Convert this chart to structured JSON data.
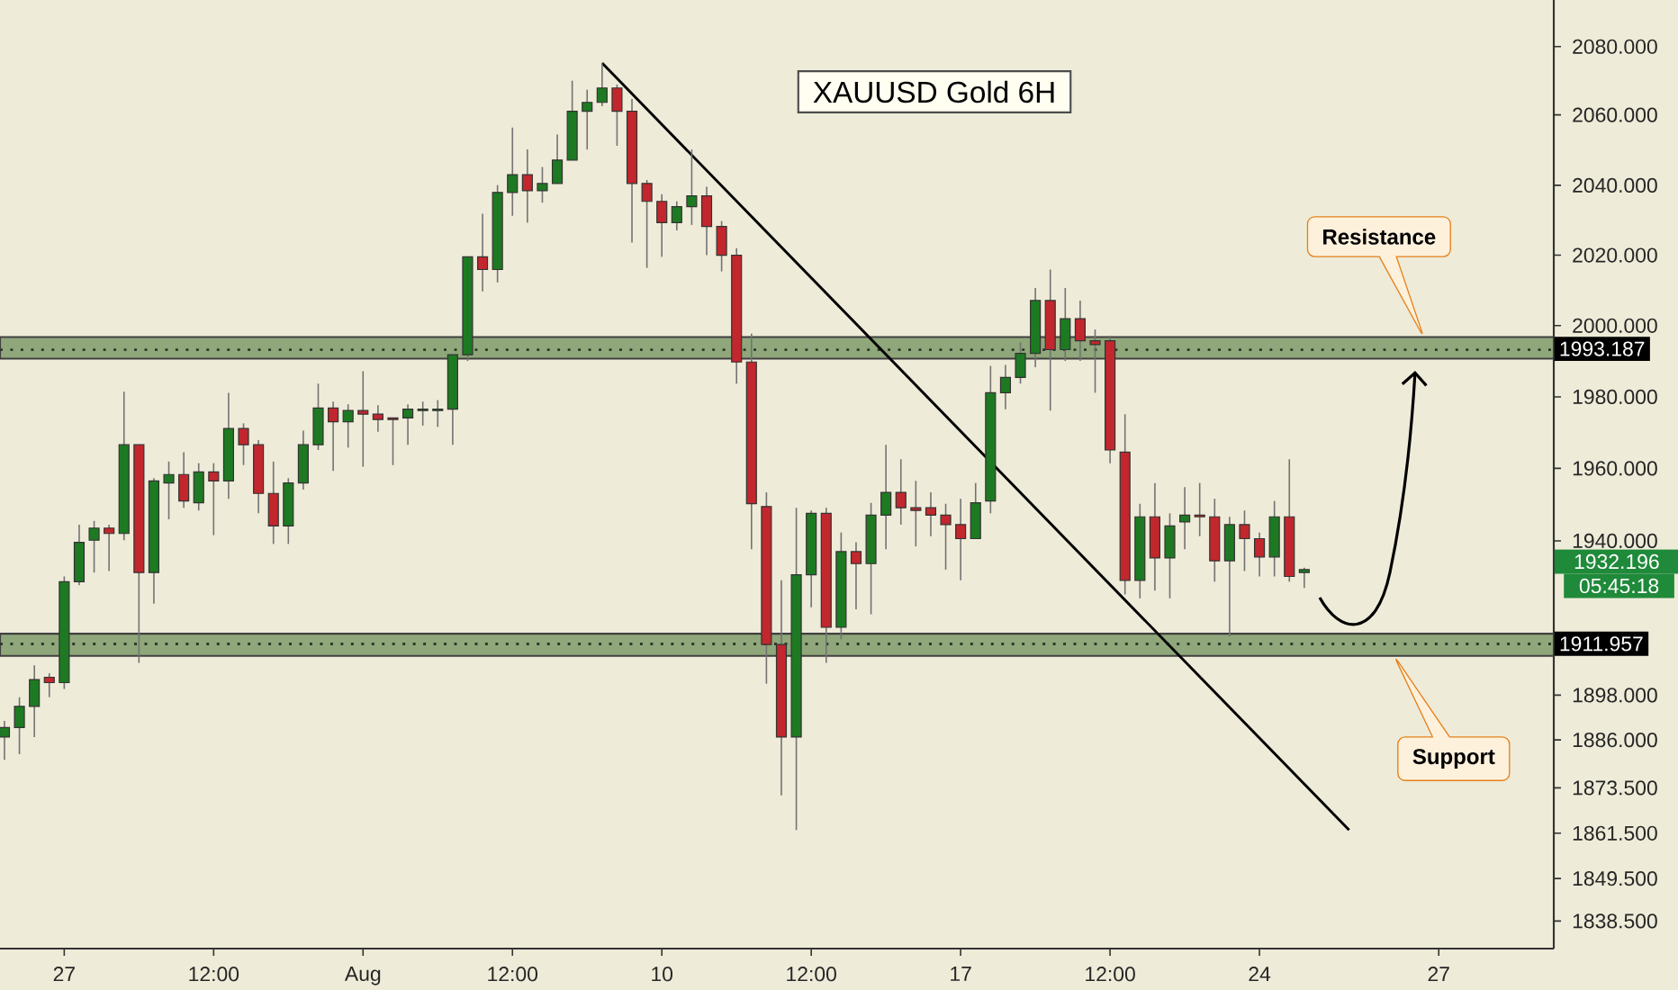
{
  "chart_data": {
    "type": "candlestick",
    "title": "XAUUSD Gold 6H",
    "categories": [
      null,
      null,
      null,
      null,
      "27",
      null,
      null,
      null,
      null,
      null,
      null,
      null,
      null,
      null,
      "12:00",
      null,
      null,
      null,
      null,
      null,
      null,
      null,
      null,
      null,
      "Aug",
      null,
      null,
      null,
      null,
      null,
      null,
      null,
      null,
      null,
      "12:00",
      null,
      null,
      null,
      null,
      null,
      null,
      null,
      null,
      null,
      "10",
      null,
      null,
      null,
      null,
      null,
      null,
      null,
      null,
      null,
      "12:00",
      null,
      null,
      null,
      null,
      null,
      null,
      null,
      null,
      null,
      "17",
      null,
      null,
      null,
      null,
      null,
      null,
      null,
      null,
      null,
      "12:00",
      null,
      null,
      null,
      null,
      null,
      null,
      null,
      null,
      null,
      "24",
      null,
      null,
      null,
      null,
      null,
      null,
      null,
      null,
      null,
      null,
      null,
      "27",
      null,
      null,
      null,
      null,
      null,
      null,
      null
    ],
    "ohlc": [
      [
        1887.1,
        1891.4,
        1880.8,
        1889.5
      ],
      [
        1889.5,
        1897.6,
        1882.3,
        1895.2
      ],
      [
        1895.2,
        1906.3,
        1887.1,
        1902.4
      ],
      [
        1902.9,
        1903.9,
        1897.6,
        1901.5
      ],
      [
        1901.5,
        1930.2,
        1899.6,
        1928.7
      ],
      [
        1928.7,
        1944.5,
        1927.7,
        1939.6
      ],
      [
        1940.1,
        1945.5,
        1931.2,
        1943.5
      ],
      [
        1943.5,
        1944.5,
        1931.6,
        1942.0
      ],
      [
        1942.0,
        1981.4,
        1940.1,
        1966.4
      ],
      [
        1966.4,
        1966.4,
        1906.8,
        1931.2
      ],
      [
        1931.2,
        1957.4,
        1922.8,
        1956.4
      ],
      [
        1955.9,
        1961.9,
        1946.0,
        1958.4
      ],
      [
        1958.4,
        1964.4,
        1949.0,
        1951.0
      ],
      [
        1950.5,
        1961.4,
        1948.5,
        1958.9
      ],
      [
        1958.9,
        1961.4,
        1941.6,
        1956.4
      ],
      [
        1956.4,
        1980.9,
        1951.5,
        1970.9
      ],
      [
        1970.9,
        1972.4,
        1960.9,
        1966.4
      ],
      [
        1966.4,
        1967.9,
        1947.5,
        1953.0
      ],
      [
        1953.0,
        1961.9,
        1939.1,
        1944.0
      ],
      [
        1944.0,
        1957.4,
        1939.1,
        1955.9
      ],
      [
        1955.9,
        1970.4,
        1953.9,
        1966.4
      ],
      [
        1966.4,
        1983.4,
        1964.9,
        1976.9
      ],
      [
        1976.9,
        1978.4,
        1959.4,
        1972.9
      ],
      [
        1972.9,
        1977.9,
        1965.9,
        1975.9
      ],
      [
        1975.9,
        1986.9,
        1960.4,
        1974.9
      ],
      [
        1974.9,
        1977.4,
        1969.9,
        1973.4
      ],
      [
        1973.9,
        1973.9,
        1960.9,
        1973.4
      ],
      [
        1973.9,
        1977.9,
        1966.4,
        1976.4
      ],
      [
        1975.9,
        1978.4,
        1971.9,
        1976.4
      ],
      [
        1975.9,
        1978.9,
        1971.4,
        1976.4
      ],
      [
        1976.4,
        1991.5,
        1966.4,
        1991.5
      ],
      [
        1991.5,
        2019.1,
        1990.0,
        2019.1
      ],
      [
        2019.1,
        2031.4,
        2009.3,
        2015.5
      ],
      [
        2015.5,
        2039.7,
        2011.8,
        2037.6
      ],
      [
        2037.6,
        2056.4,
        2030.9,
        2042.7
      ],
      [
        2042.7,
        2050.0,
        2028.9,
        2038.1
      ],
      [
        2038.1,
        2044.9,
        2034.6,
        2040.2
      ],
      [
        2040.2,
        2054.3,
        2040.2,
        2046.9
      ],
      [
        2046.9,
        2070.0,
        2046.9,
        2061.1
      ],
      [
        2061.1,
        2067.4,
        2050.0,
        2063.7
      ],
      [
        2063.7,
        2075.2,
        2062.6,
        2067.9
      ],
      [
        2067.9,
        2068.9,
        2051.1,
        2061.1
      ],
      [
        2061.1,
        2064.7,
        2023.2,
        2040.2
      ],
      [
        2040.2,
        2041.2,
        2016.0,
        2035.0
      ],
      [
        2035.0,
        2037.1,
        2019.1,
        2028.9
      ],
      [
        2028.9,
        2035.0,
        2026.7,
        2033.5
      ],
      [
        2033.5,
        2050.0,
        2028.3,
        2036.6
      ],
      [
        2036.6,
        2039.2,
        2019.6,
        2027.8
      ],
      [
        2027.8,
        2029.4,
        2015.0,
        2019.6
      ],
      [
        2019.6,
        2021.6,
        1983.4,
        1989.5
      ],
      [
        1989.5,
        1997.6,
        1937.6,
        1950.0
      ],
      [
        1949.5,
        1953.5,
        1901.0,
        1911.7
      ],
      [
        1911.7,
        1929.2,
        1871.3,
        1887.1
      ],
      [
        1887.1,
        1949.0,
        1862.2,
        1930.7
      ],
      [
        1930.7,
        1948.5,
        1921.9,
        1947.5
      ],
      [
        1947.5,
        1949.0,
        1906.8,
        1916.6
      ],
      [
        1916.6,
        1942.5,
        1913.1,
        1937.1
      ],
      [
        1937.1,
        1939.6,
        1921.4,
        1933.7
      ],
      [
        1933.7,
        1950.5,
        1919.9,
        1947.0
      ],
      [
        1947.0,
        1966.4,
        1937.6,
        1953.5
      ],
      [
        1953.5,
        1962.4,
        1944.5,
        1949.0
      ],
      [
        1949.0,
        1956.4,
        1938.6,
        1948.5
      ],
      [
        1949.0,
        1953.5,
        1941.1,
        1947.0
      ],
      [
        1947.0,
        1950.0,
        1932.2,
        1944.5
      ],
      [
        1944.5,
        1951.5,
        1929.2,
        1940.6
      ],
      [
        1940.6,
        1955.9,
        1940.6,
        1950.5
      ],
      [
        1951.0,
        1988.5,
        1947.5,
        1980.9
      ],
      [
        1980.9,
        1988.9,
        1976.4,
        1985.4
      ],
      [
        1985.4,
        1995.1,
        1983.4,
        1992.0
      ],
      [
        1992.0,
        2010.3,
        1988.0,
        2006.7
      ],
      [
        2006.7,
        2015.5,
        1975.9,
        1993.0
      ],
      [
        1993.0,
        2010.3,
        1990.0,
        2001.6
      ],
      [
        2001.6,
        2006.7,
        1990.0,
        1995.6
      ],
      [
        1995.6,
        1998.6,
        1980.9,
        1994.6
      ],
      [
        1995.6,
        1997.1,
        1961.4,
        1964.9
      ],
      [
        1964.4,
        1974.9,
        1925.3,
        1929.2
      ],
      [
        1929.2,
        1950.0,
        1924.3,
        1946.5
      ],
      [
        1946.5,
        1955.9,
        1926.2,
        1935.1
      ],
      [
        1935.1,
        1947.5,
        1924.3,
        1944.0
      ],
      [
        1945.0,
        1954.9,
        1937.6,
        1947.0
      ],
      [
        1947.0,
        1955.9,
        1941.1,
        1946.5
      ],
      [
        1946.5,
        1951.5,
        1928.7,
        1934.6
      ],
      [
        1934.6,
        1946.5,
        1914.1,
        1944.5
      ],
      [
        1944.5,
        1948.5,
        1931.6,
        1940.6
      ],
      [
        1940.6,
        1942.5,
        1930.2,
        1935.6
      ],
      [
        1935.6,
        1951.0,
        1930.2,
        1946.5
      ],
      [
        1946.5,
        1962.4,
        1928.7,
        1930.2
      ],
      [
        1931.2,
        1932.6,
        1927.2,
        1932.2
      ],
      null,
      null,
      null,
      null,
      null,
      null,
      null,
      null,
      null,
      null,
      null,
      null,
      null,
      null,
      null,
      null
    ],
    "series": [
      {
        "type": "line",
        "color": "#000000",
        "values": [
          null,
          null,
          null,
          null,
          null,
          null,
          null,
          null,
          null,
          null,
          null,
          null,
          null,
          null,
          null,
          null,
          null,
          null,
          null,
          null,
          null,
          null,
          null,
          null,
          null,
          null,
          null,
          null,
          null,
          null,
          null,
          null,
          null,
          null,
          null,
          null,
          null,
          null,
          null,
          null,
          2075.2,
          null,
          null,
          null,
          null,
          null,
          null,
          null,
          null,
          null,
          null,
          null,
          null,
          null,
          null,
          null,
          null,
          null,
          null,
          null,
          null,
          null,
          null,
          null,
          null,
          null,
          null,
          null,
          null,
          null,
          null,
          null,
          null,
          null,
          null,
          null,
          null,
          null,
          null,
          null,
          null,
          null,
          null,
          null,
          null,
          null,
          null,
          null,
          null,
          null,
          1862.2,
          null,
          null,
          null,
          null,
          null,
          null,
          null,
          null,
          null,
          null,
          null,
          null,
          null
        ]
      }
    ],
    "log": "y",
    "ylim": [
      1831.3,
      2093.8
    ],
    "yticks": [
      {
        "value": 2080,
        "label": "2080.000"
      },
      {
        "value": 2060,
        "label": "2060.000"
      },
      {
        "value": 2040,
        "label": "2040.000"
      },
      {
        "value": 2020,
        "label": "2020.000"
      },
      {
        "value": 2000,
        "label": "2000.000"
      },
      {
        "value": 1980,
        "label": "1980.000"
      },
      {
        "value": 1960,
        "label": "1960.000"
      },
      {
        "value": 1940,
        "label": "1940.000"
      },
      {
        "value": 1898,
        "label": "1898.000"
      },
      {
        "value": 1886,
        "label": "1886.000"
      },
      {
        "value": 1873.5,
        "label": "1873.500"
      },
      {
        "value": 1861.5,
        "label": "1861.500"
      },
      {
        "value": 1849.5,
        "label": "1849.500"
      },
      {
        "value": 1838.5,
        "label": "1838.500"
      }
    ],
    "bands": [
      {
        "axis": "y",
        "from": 1990.5,
        "to": 1996.6,
        "color": "#8fa77a"
      },
      {
        "axis": "y",
        "from": 1908.8,
        "to": 1914.6,
        "color": "#8fa77a"
      }
    ],
    "ref_lines": [
      {
        "axis": "y",
        "value": 1993.187,
        "label": "1993.187",
        "color": "#2b3a2b",
        "line_style": "dotted"
      },
      {
        "axis": "y",
        "value": 1911.957,
        "label": "1911.957",
        "color": "#2b3a2b",
        "line_style": "dotted"
      }
    ],
    "annotations": [
      "1932.196",
      "05:45:18",
      "Resistance",
      "Support"
    ],
    "grid": false
  }
}
